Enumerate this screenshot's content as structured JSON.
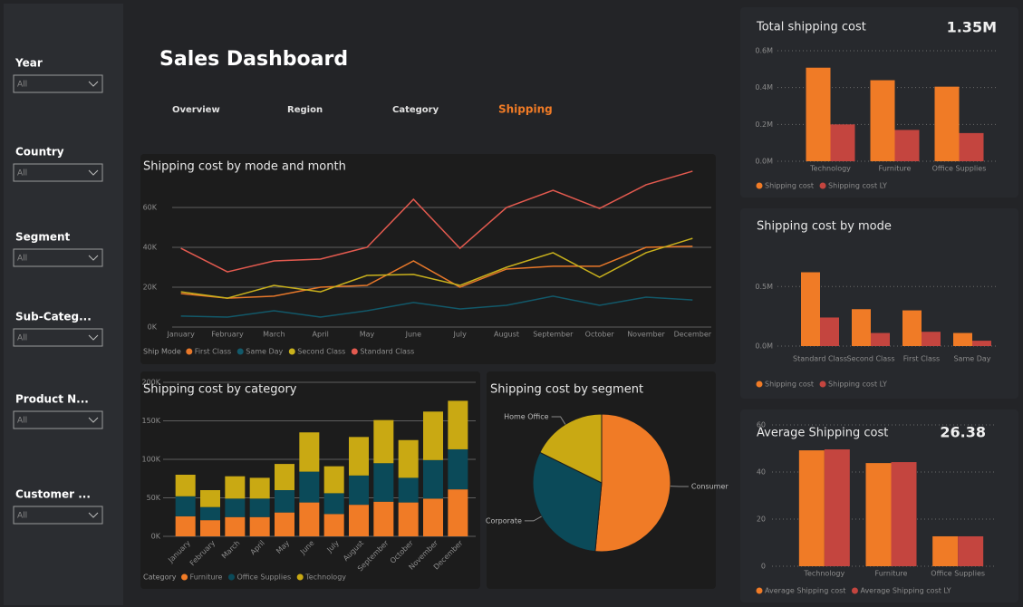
{
  "header": {
    "title": "Sales Dashboard"
  },
  "tabs": [
    {
      "label": "Overview",
      "active": false
    },
    {
      "label": "Region",
      "active": false
    },
    {
      "label": "Category",
      "active": false
    },
    {
      "label": "Shipping",
      "active": true
    }
  ],
  "filters": [
    {
      "label": "Year",
      "value": "All"
    },
    {
      "label": "Country",
      "value": "All"
    },
    {
      "label": "Segment",
      "value": "All"
    },
    {
      "label": "Sub-Categ...",
      "value": "All"
    },
    {
      "label": "Product N...",
      "value": "All"
    },
    {
      "label": "Customer ...",
      "value": "All"
    }
  ],
  "chart_data": [
    {
      "type": "line",
      "title": "Shipping cost by mode and month",
      "legend_title": "Ship Mode",
      "categories": [
        "January",
        "February",
        "March",
        "April",
        "May",
        "June",
        "July",
        "August",
        "September",
        "October",
        "November",
        "December"
      ],
      "ylim": [
        0,
        80000
      ],
      "yticks": [
        {
          "value": 0,
          "label": "0K"
        },
        {
          "value": 20000,
          "label": "20K"
        },
        {
          "value": 40000,
          "label": "40K"
        },
        {
          "value": 60000,
          "label": "60K"
        }
      ],
      "grid": true,
      "series": [
        {
          "name": "First Class",
          "color": "#e8782a",
          "values": [
            16800,
            14500,
            15500,
            20000,
            20900,
            33200,
            20000,
            29100,
            30500,
            30500,
            40000,
            40500
          ]
        },
        {
          "name": "Same Day",
          "color": "#12596a",
          "values": [
            5500,
            5000,
            8200,
            5000,
            8200,
            12300,
            9100,
            10900,
            15500,
            10900,
            15000,
            13600
          ]
        },
        {
          "name": "Second Class",
          "color": "#c9b11c",
          "values": [
            17700,
            14500,
            20900,
            17700,
            25900,
            26400,
            20900,
            30000,
            37300,
            25000,
            37300,
            44500
          ]
        },
        {
          "name": "Standard Class",
          "color": "#e35a4f",
          "values": [
            39500,
            27700,
            33200,
            34100,
            40000,
            64100,
            39500,
            60000,
            68600,
            59500,
            71400,
            78200
          ]
        }
      ]
    },
    {
      "type": "stacked_bar",
      "title": "Shipping cost by category",
      "legend_title": "Category",
      "categories": [
        "January",
        "February",
        "March",
        "April",
        "May",
        "June",
        "July",
        "August",
        "September",
        "October",
        "November",
        "December"
      ],
      "ylim": [
        0,
        200000
      ],
      "yticks": [
        {
          "value": 0,
          "label": "0K"
        },
        {
          "value": 50000,
          "label": "50K"
        },
        {
          "value": 100000,
          "label": "100K"
        },
        {
          "value": 150000,
          "label": "150K"
        },
        {
          "value": 200000,
          "label": "200K"
        }
      ],
      "grid": true,
      "series": [
        {
          "name": "Furniture",
          "color": "#f07b26",
          "values": [
            26000,
            21000,
            25000,
            25000,
            31000,
            44000,
            29000,
            41000,
            45000,
            44000,
            49000,
            61000
          ]
        },
        {
          "name": "Office Supplies",
          "color": "#0b4a59",
          "values": [
            26000,
            17000,
            24000,
            24000,
            29000,
            40000,
            27000,
            38000,
            50000,
            32000,
            50000,
            52000
          ]
        },
        {
          "name": "Technology",
          "color": "#c9a913",
          "values": [
            28000,
            22000,
            29000,
            27000,
            34000,
            51000,
            35000,
            50000,
            56000,
            49000,
            63000,
            63000
          ]
        }
      ]
    },
    {
      "type": "pie",
      "title": "Shipping cost by segment",
      "categories": [
        "Consumer",
        "Corporate",
        "Home Office"
      ],
      "values": [
        51.5,
        30.8,
        17.7
      ],
      "colors": [
        "#f07b26",
        "#0b4a59",
        "#c9a913"
      ]
    },
    {
      "type": "grouped_bar",
      "title": "Total shipping cost",
      "kpi": "1.35M",
      "categories": [
        "Technology",
        "Furniture",
        "Office Supplies"
      ],
      "ylim": [
        0,
        600000
      ],
      "yticks": [
        {
          "value": 0,
          "label": "0.0M"
        },
        {
          "value": 200000,
          "label": "0.2M"
        },
        {
          "value": 400000,
          "label": "0.4M"
        },
        {
          "value": 600000,
          "label": "0.6M"
        }
      ],
      "grid": true,
      "series": [
        {
          "name": "Shipping cost",
          "color": "#f07b26",
          "values": [
            508000,
            440000,
            405000
          ]
        },
        {
          "name": "Shipping cost LY",
          "color": "#c4453f",
          "values": [
            200000,
            170000,
            153000
          ]
        }
      ]
    },
    {
      "type": "grouped_bar",
      "title": "Shipping cost by mode",
      "categories": [
        "Standard Class",
        "Second Class",
        "First Class",
        "Same Day"
      ],
      "ylim": [
        0,
        700000
      ],
      "yticks": [
        {
          "value": 0,
          "label": "0.0M"
        },
        {
          "value": 500000,
          "label": "0.5M"
        }
      ],
      "grid": true,
      "series": [
        {
          "name": "Shipping cost",
          "color": "#f07b26",
          "values": [
            620000,
            310000,
            300000,
            110000
          ]
        },
        {
          "name": "Shipping cost LY",
          "color": "#c4453f",
          "values": [
            240000,
            110000,
            120000,
            45000
          ]
        }
      ]
    },
    {
      "type": "grouped_bar",
      "title": "Average Shipping cost",
      "kpi": "26.38",
      "categories": [
        "Technology",
        "Furniture",
        "Office Supplies"
      ],
      "ylim": [
        0,
        60
      ],
      "yticks": [
        0,
        20,
        40,
        60
      ],
      "grid": true,
      "series": [
        {
          "name": "Average Shipping cost",
          "color": "#f07b26",
          "values": [
            49.2,
            43.8,
            12.7
          ]
        },
        {
          "name": "Average Shipping cost LY",
          "color": "#c4453f",
          "values": [
            49.6,
            44.2,
            12.7
          ]
        }
      ]
    }
  ]
}
